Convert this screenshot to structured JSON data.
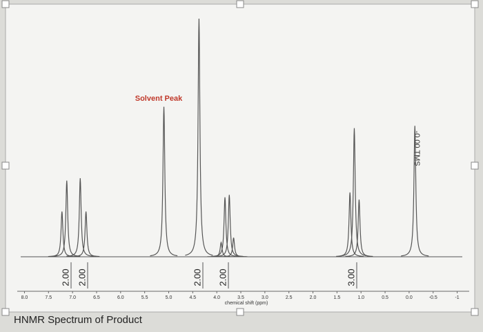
{
  "chart_data": {
    "type": "spectrum",
    "annotations": {
      "solvent": "Solvent Peak",
      "tms": "-0.00 TMS"
    },
    "x_label": "chemical shift (ppm)",
    "caption": "HNMR Spectrum of Product",
    "x": [
      7.22,
      7.12,
      6.84,
      6.72,
      5.1,
      4.37,
      3.91,
      3.83,
      3.74,
      3.65,
      1.23,
      1.14,
      1.04,
      -0.12
    ],
    "values": [
      19,
      32,
      33,
      19,
      63,
      100,
      6,
      25,
      26,
      8,
      27,
      54,
      24,
      55
    ],
    "color": "#555555",
    "integrals": [
      "2.00",
      "2.00",
      "2.00",
      "2.00",
      "3.00"
    ],
    "xlim": [
      8.15,
      -1.25
    ],
    "ylim": [
      0,
      100
    ],
    "xticks": [
      {
        "value": 8,
        "label": "8.0"
      },
      7.5,
      {
        "value": 7,
        "label": "7.0"
      },
      6.5,
      {
        "value": 6,
        "label": "6.0"
      },
      5.5,
      {
        "value": 5,
        "label": "5.0"
      },
      4.5,
      {
        "value": 4,
        "label": "4.0"
      },
      3.5,
      {
        "value": 3,
        "label": "3.0"
      },
      2.5,
      {
        "value": 2,
        "label": "2.0"
      },
      1.5,
      {
        "value": 1,
        "label": "1.0"
      },
      0.5,
      {
        "value": 0,
        "label": "0.0"
      },
      -0.5,
      -1
    ]
  }
}
